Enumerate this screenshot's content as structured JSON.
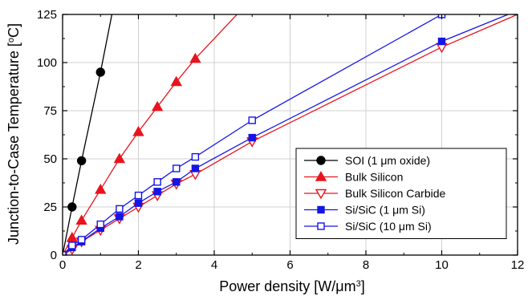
{
  "chart_data": {
    "type": "scatter",
    "xlabel_prefix": "Power density [W/",
    "xlabel_mu": "μ",
    "xlabel_unit": "m",
    "xlabel_sup": "3",
    "xlabel_suffix": "]",
    "ylabel_prefix": "Junction-to-Case Temperature [",
    "ylabel_sup": "o",
    "ylabel_suffix": "C]",
    "xlim": [
      0,
      12
    ],
    "ylim": [
      0,
      125
    ],
    "xticks": [
      0,
      2,
      4,
      6,
      8,
      10,
      12
    ],
    "xtick_labels": [
      "0",
      "2",
      "4",
      "6",
      "8",
      "10",
      "12"
    ],
    "yticks": [
      0,
      25,
      50,
      75,
      100,
      125
    ],
    "ytick_labels": [
      "0",
      "25",
      "50",
      "75",
      "100",
      "125"
    ],
    "grid": true,
    "legend_position": "bottom-right",
    "series": [
      {
        "name": "SOI (1 μm oxide)",
        "color": "#000000",
        "marker": "circle",
        "filled": true,
        "x": [
          0,
          0.25,
          0.5,
          1.0
        ],
        "y": [
          0,
          25,
          49,
          95
        ],
        "line_extension": [
          1.3,
          125
        ]
      },
      {
        "name": "Bulk Silicon",
        "color": "#e8141d",
        "marker": "triangle-up",
        "filled": true,
        "x": [
          0,
          0.25,
          0.5,
          1.0,
          1.5,
          2.0,
          2.5,
          3.0,
          3.5
        ],
        "y": [
          0,
          9,
          18,
          34,
          50,
          64,
          77,
          90,
          102
        ],
        "line_extension": [
          4.6,
          125
        ]
      },
      {
        "name": "Bulk Silicon Carbide",
        "color": "#e8141d",
        "marker": "triangle-down",
        "filled": false,
        "x": [
          0,
          0.25,
          0.5,
          1.0,
          1.5,
          2.0,
          2.5,
          3.0,
          3.5,
          5.0,
          10.0
        ],
        "y": [
          0,
          3,
          7,
          13,
          19,
          25,
          31,
          37,
          42,
          59,
          108
        ],
        "line_extension": [
          12,
          125
        ]
      },
      {
        "name": "Si/SiC (1 μm Si)",
        "color": "#1515e6",
        "marker": "square",
        "filled": true,
        "x": [
          0,
          0.25,
          0.5,
          1.0,
          1.5,
          2.0,
          2.5,
          3.0,
          3.5,
          5.0,
          10.0
        ],
        "y": [
          0,
          4,
          7,
          14,
          20,
          27,
          33,
          38,
          45,
          61,
          111
        ],
        "line_extension": [
          11.75,
          125
        ]
      },
      {
        "name": "Si/SiC (10 μm Si)",
        "color": "#1515e6",
        "marker": "square",
        "filled": false,
        "x": [
          0,
          0.25,
          0.5,
          1.0,
          1.5,
          2.0,
          2.5,
          3.0,
          3.5,
          5.0,
          10.0
        ],
        "y": [
          0,
          5,
          8,
          16,
          24,
          31,
          38,
          45,
          51,
          70,
          125
        ],
        "line_extension": [
          10.6,
          133
        ]
      }
    ]
  }
}
